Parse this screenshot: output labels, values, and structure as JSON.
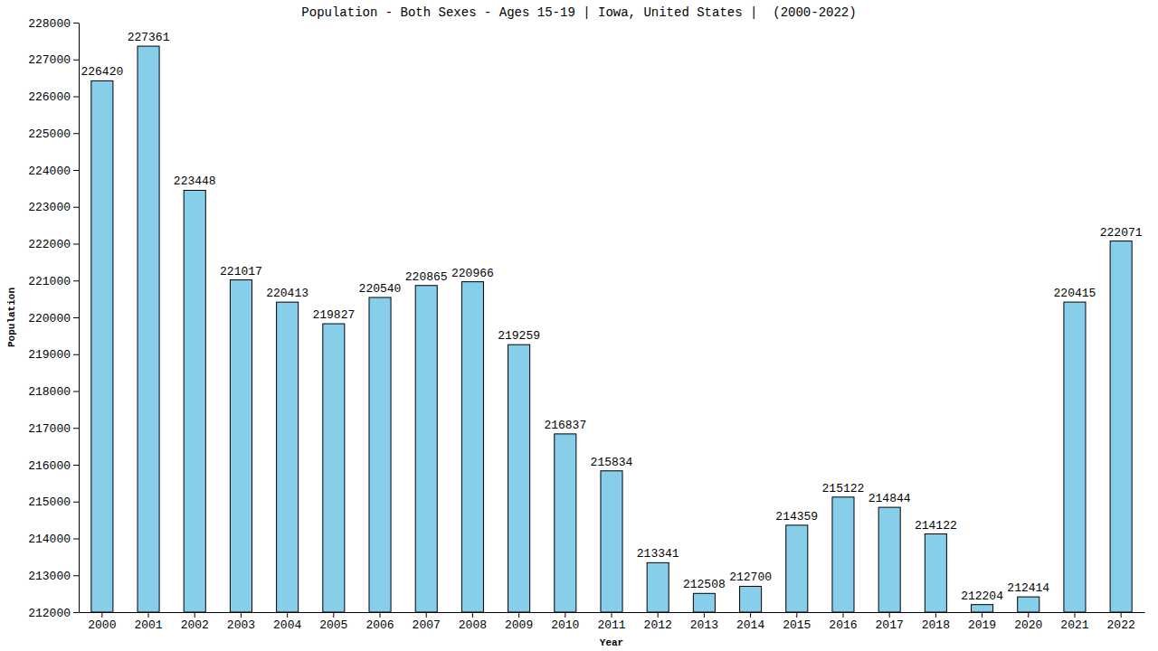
{
  "chart_data": {
    "type": "bar",
    "title": "Population - Both Sexes - Ages 15-19 | Iowa, United States |  (2000-2022)",
    "x_label": "Year",
    "y_label": "Population",
    "categories": [
      "2000",
      "2001",
      "2002",
      "2003",
      "2004",
      "2005",
      "2006",
      "2007",
      "2008",
      "2009",
      "2010",
      "2011",
      "2012",
      "2013",
      "2014",
      "2015",
      "2016",
      "2017",
      "2018",
      "2019",
      "2020",
      "2021",
      "2022"
    ],
    "values": [
      226420,
      227361,
      223448,
      221017,
      220413,
      219827,
      220540,
      220865,
      220966,
      219259,
      216837,
      215834,
      213341,
      212508,
      212700,
      214359,
      215122,
      214844,
      214122,
      212204,
      212414,
      220415,
      222071
    ],
    "color": "#87ceeb",
    "ylim": [
      212000,
      228000
    ],
    "yticks": [
      212000,
      213000,
      214000,
      215000,
      216000,
      217000,
      218000,
      219000,
      220000,
      221000,
      222000,
      223000,
      224000,
      225000,
      226000,
      227000,
      228000
    ],
    "grid": false,
    "data_labels": true
  }
}
